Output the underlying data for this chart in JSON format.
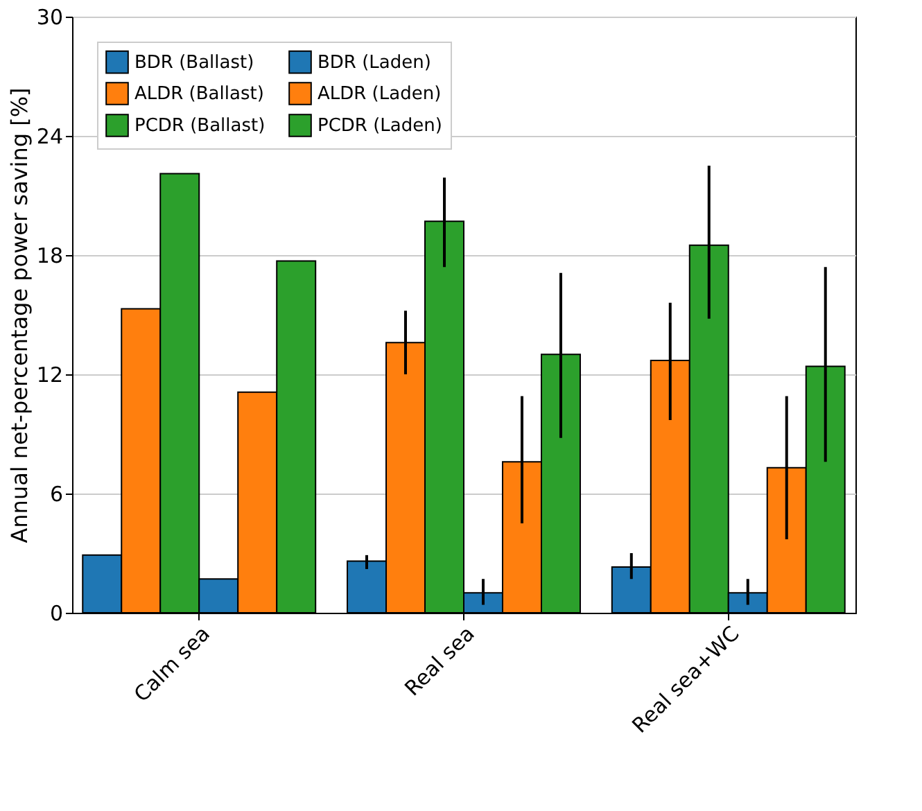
{
  "chart_data": {
    "type": "bar",
    "ylabel": "Annual net-percentage power saving [%]",
    "categories": [
      "Calm sea",
      "Real sea",
      "Real sea+WC"
    ],
    "series": [
      {
        "name": "BDR (Ballast)",
        "color": "#1f77b4",
        "values": [
          2.9,
          2.6,
          2.3
        ],
        "errors": [
          null,
          [
            2.2,
            2.9
          ],
          [
            1.7,
            3.0
          ]
        ]
      },
      {
        "name": "ALDR (Ballast)",
        "color": "#ff7f0e",
        "values": [
          15.3,
          13.6,
          12.7
        ],
        "errors": [
          null,
          [
            12.0,
            15.2
          ],
          [
            9.7,
            15.6
          ]
        ]
      },
      {
        "name": "PCDR (Ballast)",
        "color": "#2ca02c",
        "values": [
          22.1,
          19.7,
          18.5
        ],
        "errors": [
          null,
          [
            17.4,
            21.9
          ],
          [
            14.8,
            22.5
          ]
        ]
      },
      {
        "name": "BDR (Laden)",
        "color": "#1f77b4",
        "values": [
          1.7,
          1.0,
          1.0
        ],
        "errors": [
          null,
          [
            0.4,
            1.7
          ],
          [
            0.4,
            1.7
          ]
        ]
      },
      {
        "name": "ALDR (Laden)",
        "color": "#ff7f0e",
        "values": [
          11.1,
          7.6,
          7.3
        ],
        "errors": [
          null,
          [
            4.5,
            10.9
          ],
          [
            3.7,
            10.9
          ]
        ]
      },
      {
        "name": "PCDR (Laden)",
        "color": "#2ca02c",
        "values": [
          17.7,
          13.0,
          12.4
        ],
        "errors": [
          null,
          [
            8.8,
            17.1
          ],
          [
            7.6,
            17.4
          ]
        ]
      }
    ],
    "ylim": [
      0,
      30
    ],
    "yticks": [
      0,
      6,
      12,
      18,
      24,
      30
    ],
    "grid": "y",
    "legend": "top left"
  }
}
